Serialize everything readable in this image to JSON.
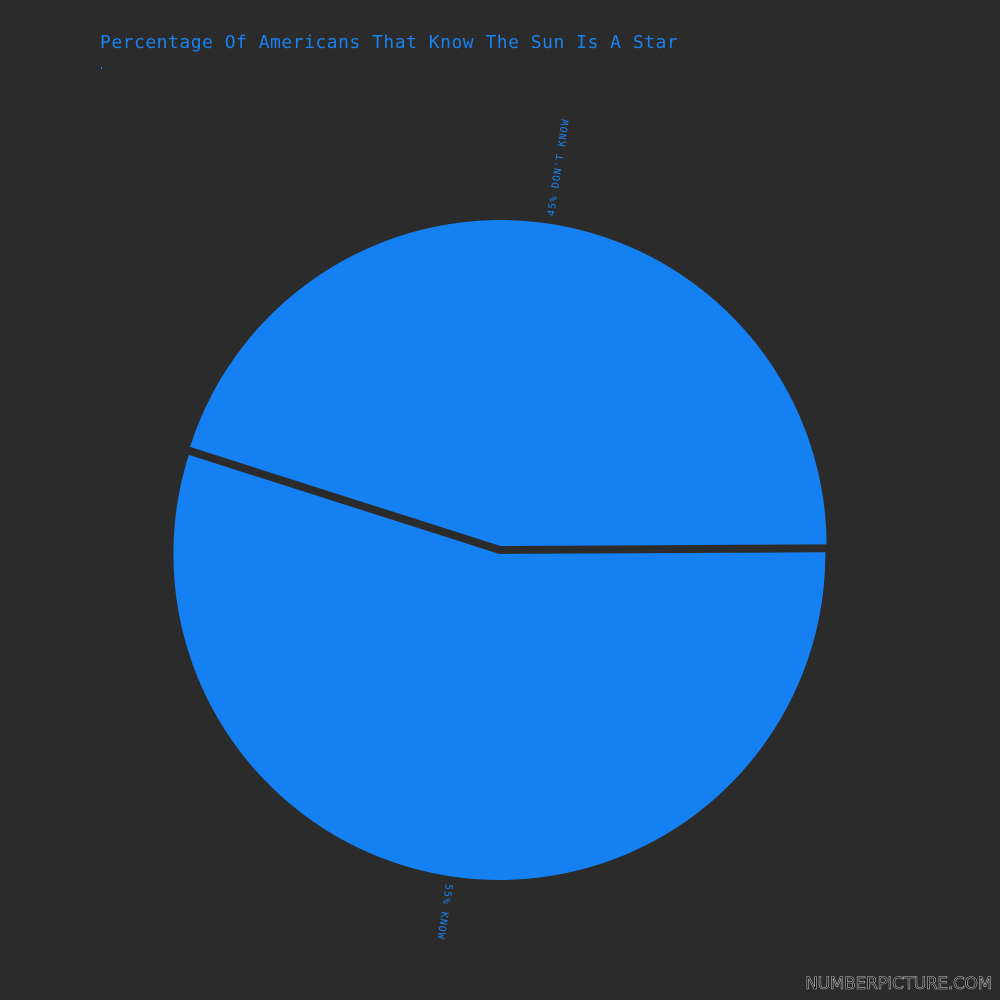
{
  "title": "Percentage Of Americans That Know The Sun Is A Star",
  "footer": "NUMBERPICTURE.COM",
  "colors": {
    "background": "#2b2b2b",
    "slice": "#1480f2",
    "text": "#1a82f0"
  },
  "chart_data": {
    "type": "pie",
    "title": "Percentage Of Americans That Know The Sun Is A Star",
    "slices": [
      {
        "label": "45% DON'T KNOW",
        "value": 45
      },
      {
        "label": "55% KNOW",
        "value": 55
      }
    ]
  }
}
